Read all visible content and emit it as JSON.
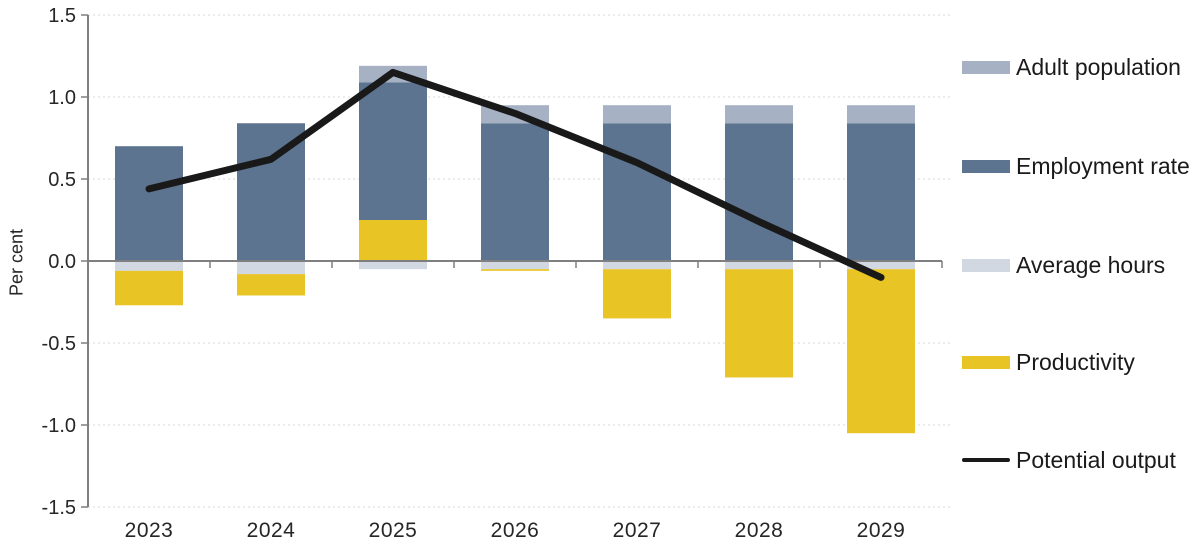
{
  "figure": {
    "background": "#ffffff",
    "text_color": "#262626",
    "axis_color": "#7f7f7f",
    "gridline_color": "#d9d9d9"
  },
  "chart_data": {
    "type": "bar",
    "subtype": "stacked-bar-with-line-overlay",
    "title": "",
    "xlabel": "",
    "ylabel": "Per cent",
    "categories": [
      "2023",
      "2024",
      "2025",
      "2026",
      "2027",
      "2028",
      "2029"
    ],
    "ylim": [
      -1.5,
      1.5
    ],
    "ytick_labels": [
      "1.5",
      "1.0",
      "0.5",
      "0.0",
      "-0.5",
      "-1.0",
      "-1.5"
    ],
    "ytick_values": [
      1.5,
      1.0,
      0.5,
      0.0,
      -0.5,
      -1.0,
      -1.5
    ],
    "grid": "horizontal-dotted",
    "legend_position": "right",
    "series": [
      {
        "name": "Adult population",
        "type": "bar",
        "color": "#a6b2c3",
        "values": [
          0,
          0,
          0.1,
          0.11,
          0.11,
          0.11,
          0.11
        ]
      },
      {
        "name": "Employment rate",
        "type": "bar",
        "color": "#5d7490",
        "values": [
          0.7,
          0.84,
          0.84,
          0.84,
          0.84,
          0.84,
          0.84
        ]
      },
      {
        "name": "Average hours",
        "type": "bar",
        "color": "#d2d8e1",
        "values": [
          -0.06,
          -0.08,
          -0.05,
          -0.05,
          -0.05,
          -0.05,
          -0.05
        ]
      },
      {
        "name": "Productivity",
        "type": "bar",
        "color": "#e8c424",
        "values": [
          -0.21,
          -0.13,
          0.25,
          -0.01,
          -0.3,
          -0.66,
          -1.0
        ]
      },
      {
        "name": "Potential output",
        "type": "line",
        "color": "#191919",
        "values": [
          0.44,
          0.62,
          1.15,
          0.9,
          0.6,
          0.24,
          -0.1
        ]
      }
    ],
    "stack_order": [
      "Average hours",
      "Productivity",
      "Employment rate",
      "Adult population"
    ]
  }
}
